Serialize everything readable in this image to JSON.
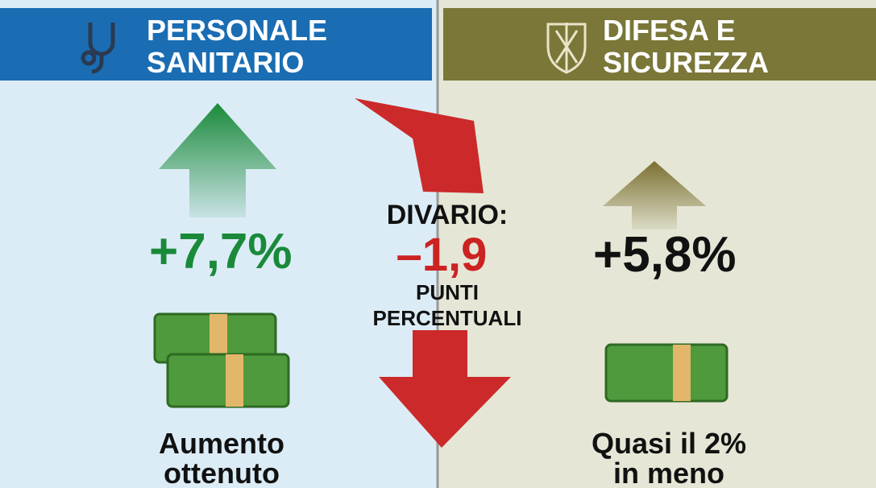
{
  "left": {
    "title": [
      "PERSONALE",
      "SANITARIO"
    ],
    "value": "+7,7%",
    "caption": [
      "Aumento",
      "ottenuto"
    ]
  },
  "center": {
    "label": "DIVARIO:",
    "value": "–1,9",
    "unit": [
      "PUNTI",
      "PERCENTUALI"
    ]
  },
  "right": {
    "title": [
      "DIFESA E",
      "SICUREZZA"
    ],
    "value": "+5,8%",
    "caption": [
      "Quasi il 2%",
      "in meno"
    ]
  }
}
